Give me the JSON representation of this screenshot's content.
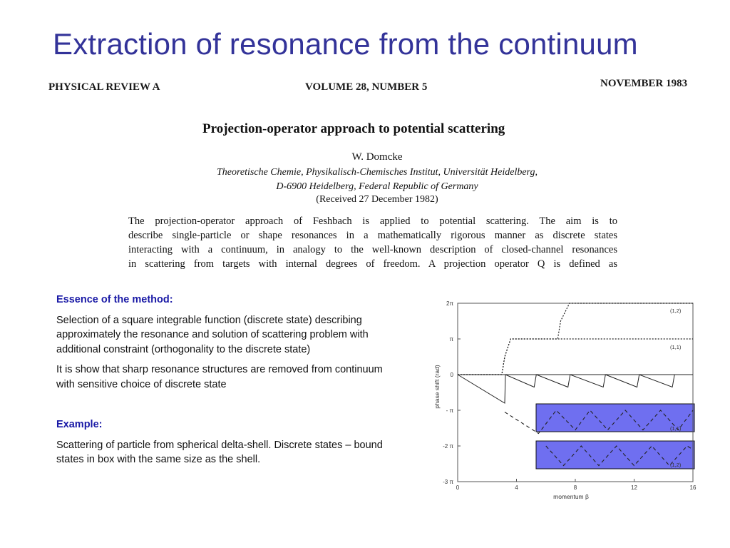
{
  "slide": {
    "title": "Extraction of resonance from the continuum"
  },
  "paper": {
    "journal": "PHYSICAL REVIEW A",
    "volume": "VOLUME 28, NUMBER 5",
    "date": "NOVEMBER 1983",
    "title": "Projection-operator approach to potential scattering",
    "author": "W. Domcke",
    "affiliation_1": "Theoretische Chemie, Physikalisch-Chemisches Institut, Universität Heidelberg,",
    "affiliation_2": "D-6900 Heidelberg, Federal Republic of Germany",
    "received": "(Received 27 December 1982)",
    "abstract_lines": [
      "The projection-operator approach of Feshbach is applied to potential scattering.  The aim is to",
      "describe single-particle or shape resonances in a mathematically rigorous manner as discrete states",
      "interacting with a continuum, in analogy to the well-known description of closed-channel resonances",
      "in scattering from targets with internal degrees of freedom.  A projection operator Q is defined as"
    ]
  },
  "text": {
    "essence_heading": "Essence of the method:",
    "essence_p1": "Selection of a square integrable function  (discrete state) describing approximately the resonance and solution of scattering problem with additional constraint (orthogonality to the discrete state)",
    "essence_p2": "It is show that sharp resonance structures are removed from continuum with sensitive choice of discrete state",
    "example_heading": "Example:",
    "example_p1": "Scattering of particle from spherical delta-shell. Discrete states – bound states in box with the same size as the shell."
  },
  "figure": {
    "ylabel": "phase shift (rad)",
    "xlabel": "momentum β",
    "y_ticks": [
      "2π",
      "π",
      "0",
      "- π",
      "-2 π",
      "-3 π"
    ],
    "x_ticks": [
      "0",
      "4",
      "8",
      "12",
      "16"
    ],
    "curve_labels": [
      "(1,2)",
      "(1,1)",
      "(1,1)",
      "(1,2)"
    ],
    "highlight_color": "#6f6ff0"
  },
  "chart_data": {
    "type": "line",
    "xlabel": "momentum β",
    "ylabel": "phase shift (rad)",
    "xlim": [
      0,
      16
    ],
    "ylim": [
      -3,
      2
    ],
    "y_unit": "π",
    "series": [
      {
        "name": "(1,2)",
        "x": [
          0,
          3,
          3.2,
          3.6,
          6.8,
          7.0,
          7.6,
          16
        ],
        "y": [
          0,
          0,
          0.5,
          1.0,
          1.0,
          1.5,
          2.0,
          2.0
        ]
      },
      {
        "name": "(1,1)",
        "x": [
          0,
          3,
          3.2,
          3.6,
          16
        ],
        "y": [
          0,
          0,
          0.5,
          1.0,
          1.0
        ]
      },
      {
        "x": [
          0,
          3.2,
          3.25,
          5.2,
          5.35,
          7.5,
          7.65,
          9.9,
          10.05,
          12.2,
          12.35,
          14.6,
          14.75,
          16
        ],
        "y": [
          0,
          -0.8,
          0,
          -0.35,
          0,
          -0.35,
          0,
          -0.35,
          0,
          -0.35,
          0,
          -0.35,
          0,
          0
        ]
      },
      {
        "name": "(1,1)",
        "x": [
          3.2,
          5.5,
          6.7,
          8.0,
          9.0,
          10.2,
          11.4,
          12.6,
          13.8,
          15.0,
          16
        ],
        "y": [
          -1.05,
          -1.65,
          -1.0,
          -1.55,
          -1.0,
          -1.55,
          -1.0,
          -1.55,
          -1.0,
          -1.55,
          -1.0
        ]
      },
      {
        "name": "(1,2)",
        "x": [
          6.0,
          7.2,
          8.4,
          9.6,
          10.8,
          12.0,
          13.2,
          14.4,
          15.6,
          16
        ],
        "y": [
          -2.0,
          -2.55,
          -2.0,
          -2.55,
          -2.0,
          -2.55,
          -2.0,
          -2.55,
          -2.0,
          -2.1
        ]
      }
    ]
  }
}
